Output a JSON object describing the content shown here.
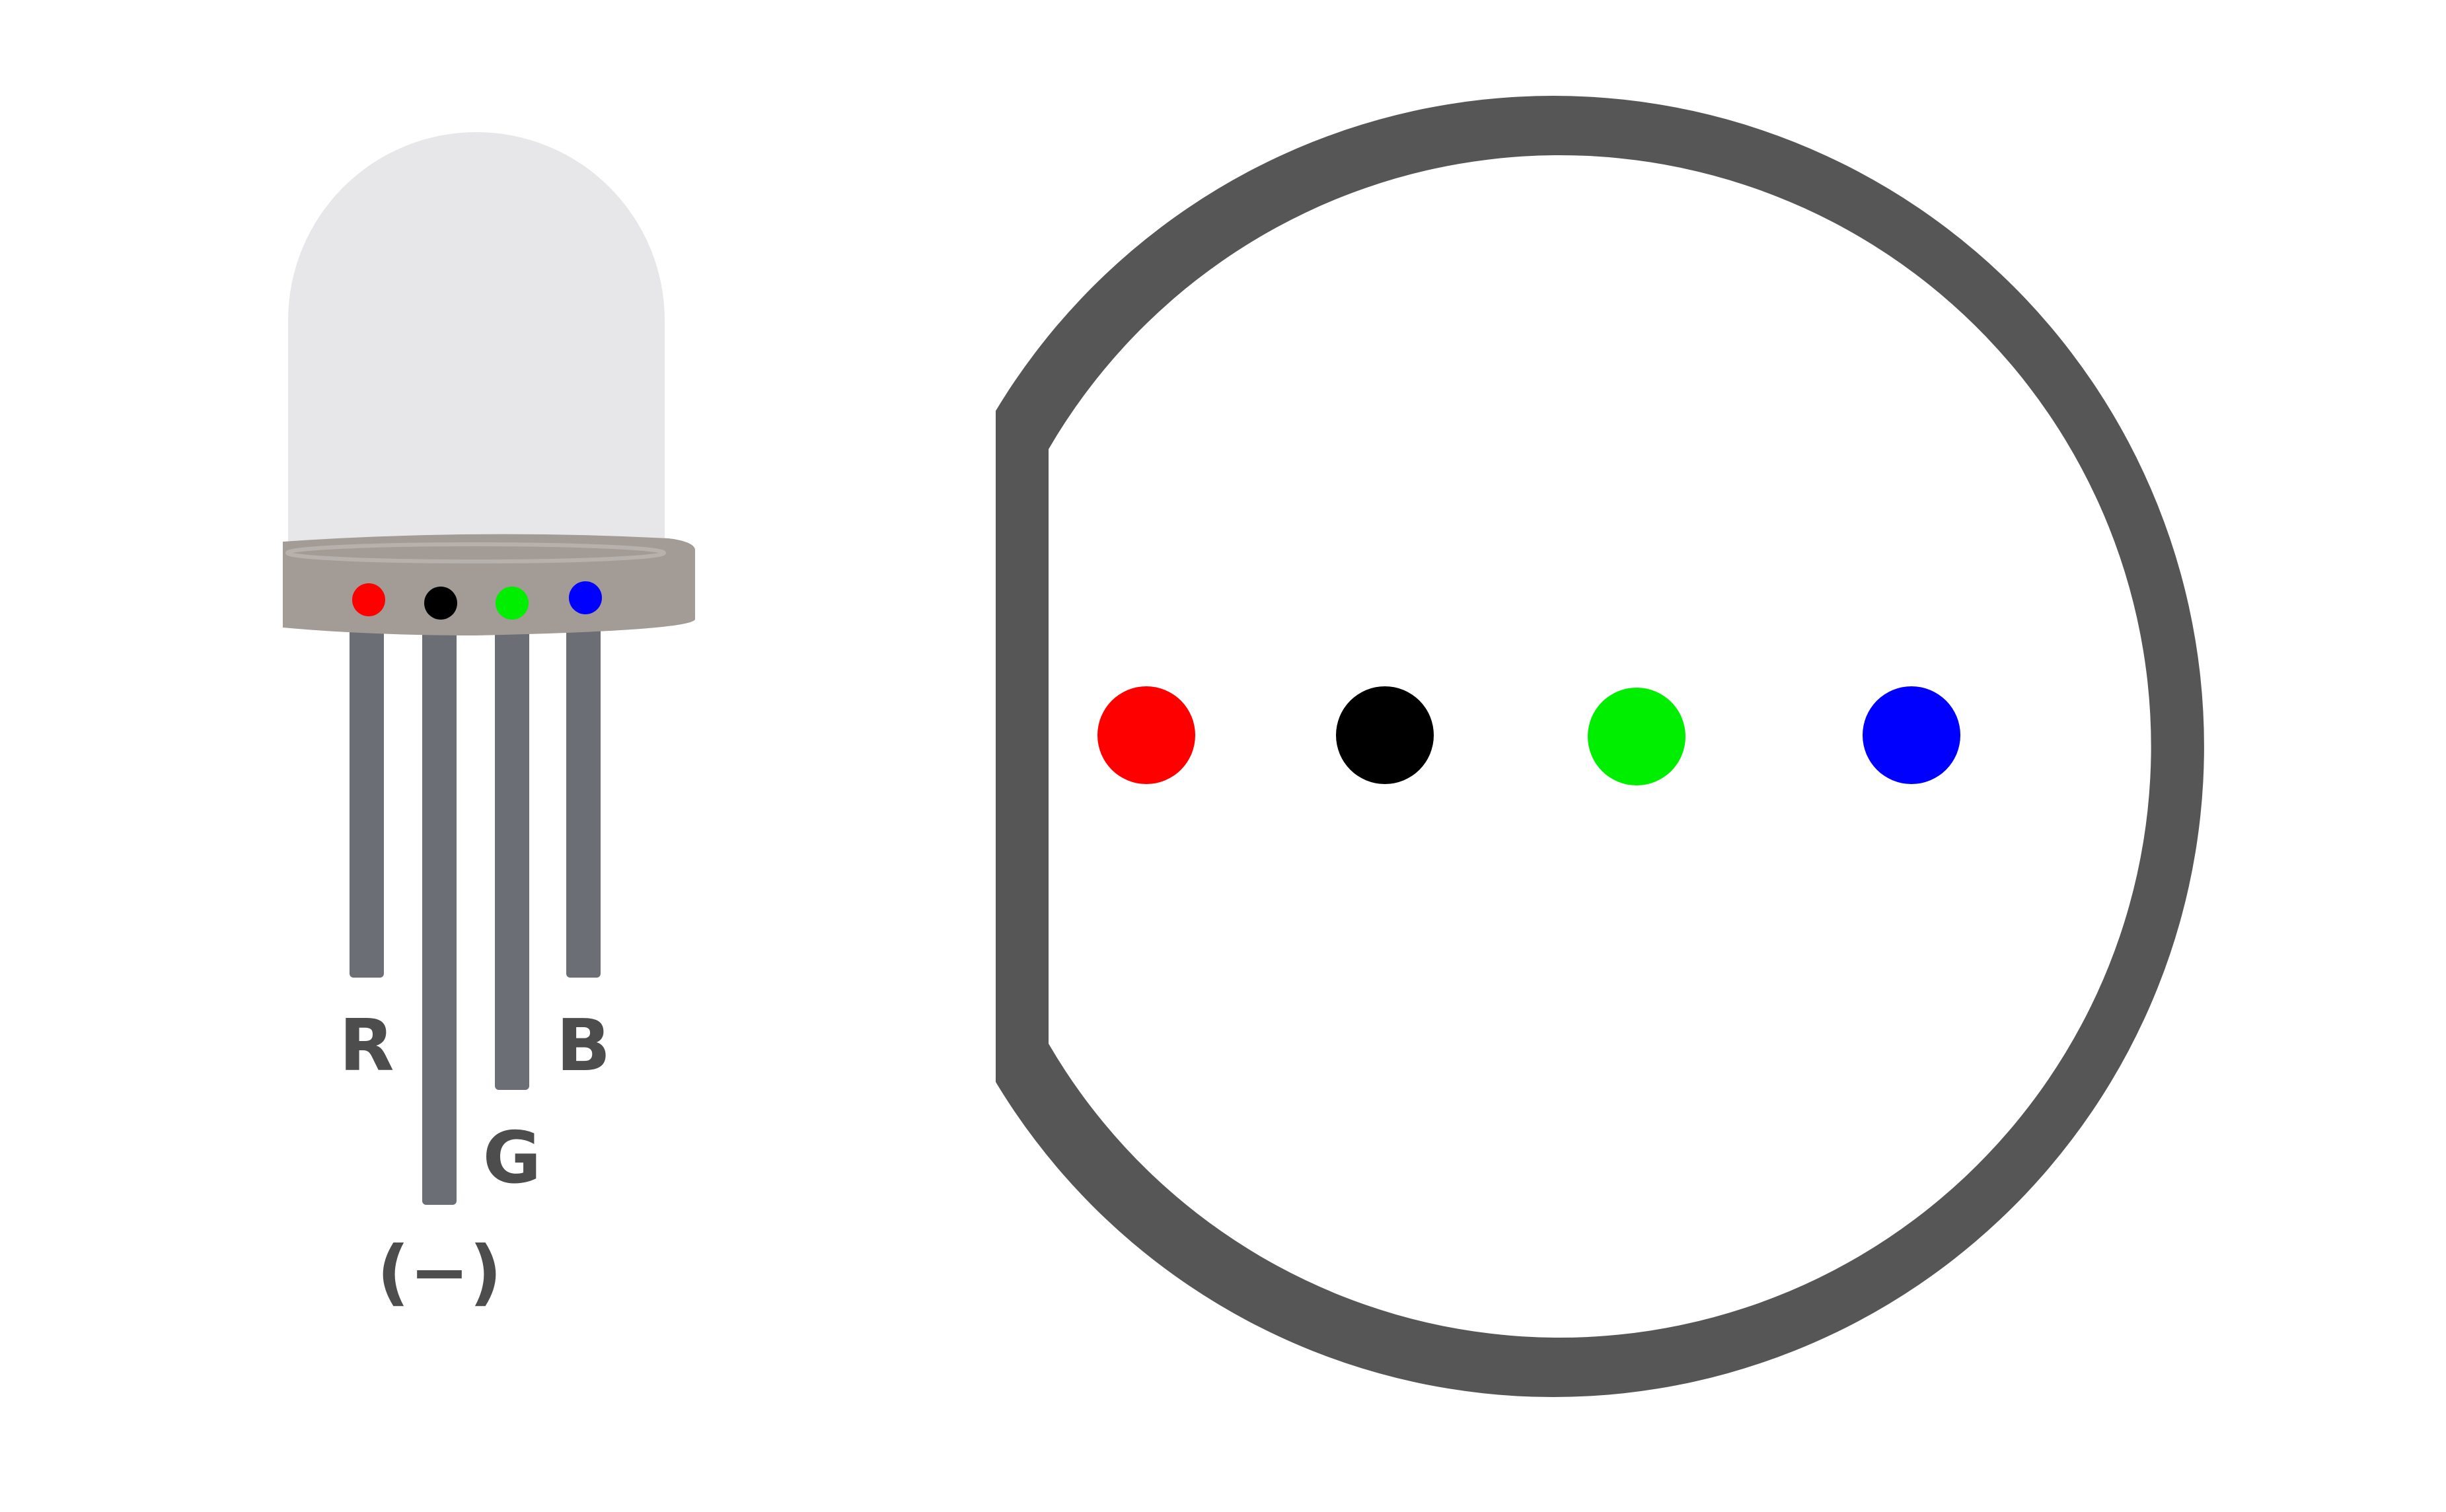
{
  "led": {
    "colors": {
      "dome": "#e7e7e9",
      "base": "#a39b96",
      "base_rim": "#b7b1ad",
      "leg": "#6b6e75"
    },
    "pins": [
      {
        "id": "red",
        "label": "R",
        "color": "#ff0000"
      },
      {
        "id": "black",
        "label": "(−)",
        "color": "#000000"
      },
      {
        "id": "green",
        "label": "G",
        "color": "#00ee00"
      },
      {
        "id": "blue",
        "label": "B",
        "color": "#0000ff"
      }
    ]
  },
  "top_view": {
    "colors": {
      "outline": "#565656",
      "fill": "#ffffff"
    },
    "pin_colors": [
      "#ff0000",
      "#000000",
      "#00ee00",
      "#0000ff"
    ]
  }
}
